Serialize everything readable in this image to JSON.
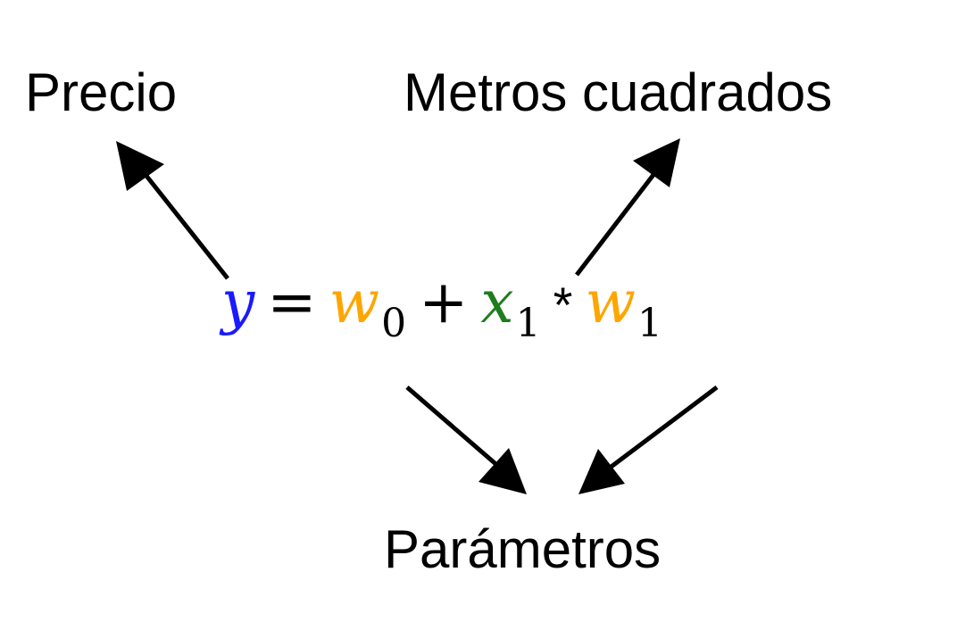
{
  "labels": {
    "precio": "Precio",
    "metros": "Metros cuadrados",
    "parametros": "Parámetros"
  },
  "equation": {
    "y": "y",
    "equals": "=",
    "w0_var": "w",
    "w0_sub": "0",
    "plus": "+",
    "x1_var": "x",
    "x1_sub": "1",
    "times": "*",
    "w1_var": "w",
    "w1_sub": "1"
  },
  "colors": {
    "y": "#1a1aff",
    "w": "#ffa500",
    "x": "#1e7d1e",
    "text": "#000000",
    "arrow": "#000000"
  }
}
